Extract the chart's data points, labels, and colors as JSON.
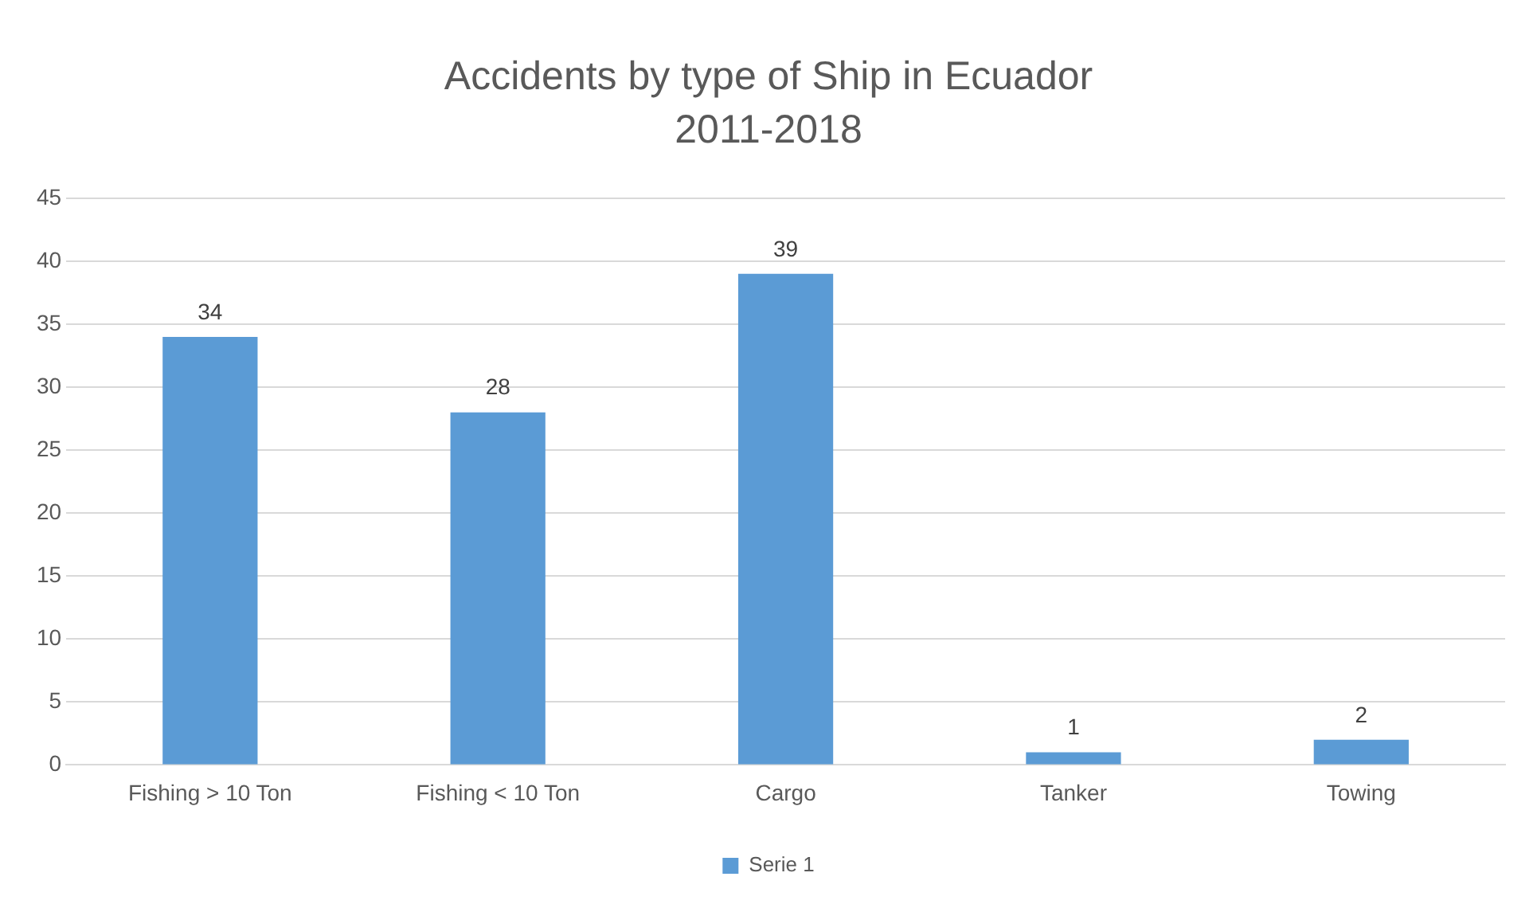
{
  "chart_data": {
    "type": "bar",
    "title": "Accidents by type of Ship in Ecuador\n2011-2018",
    "categories": [
      "Fishing > 10 Ton",
      "Fishing < 10 Ton",
      "Cargo",
      "Tanker",
      "Towing"
    ],
    "series": [
      {
        "name": "Serie 1",
        "color": "#5b9bd5",
        "values": [
          34,
          28,
          39,
          1,
          2
        ]
      }
    ],
    "ylim": [
      0,
      45
    ],
    "yticks": [
      0,
      5,
      10,
      15,
      20,
      25,
      30,
      35,
      40,
      45
    ],
    "grid": "y",
    "legend": "bottom",
    "data_labels": true
  }
}
